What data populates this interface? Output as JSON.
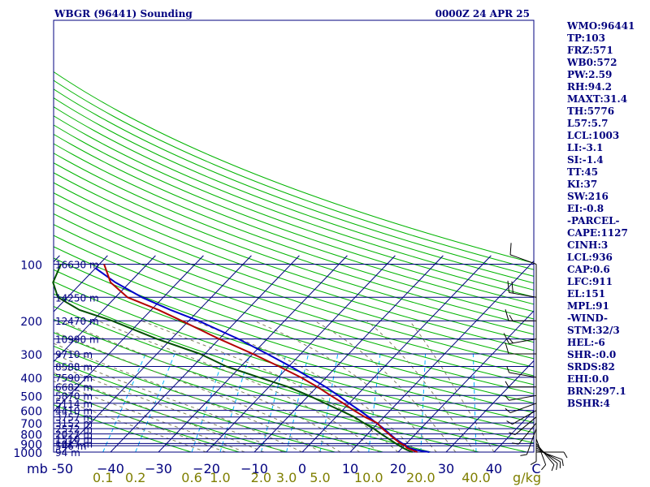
{
  "header": {
    "station": "WBGR (96441) Sounding",
    "time": "0000Z 24 APR 25"
  },
  "indices": [
    "WMO:96441",
    "TP:103",
    "FRZ:571",
    "WB0:572",
    "PW:2.59",
    "RH:94.2",
    "MAXT:31.4",
    "TH:5776",
    "L57:5.7",
    "LCL:1003",
    "LI:-3.1",
    "SI:-1.4",
    "TT:45",
    "KI:37",
    "SW:216",
    "EI:-0.8",
    "-PARCEL-",
    "CAPE:1127",
    "CINH:3",
    "LCL:936",
    "CAP:0.6",
    "LFC:911",
    "EL:151",
    "MPL:91",
    "-WIND-",
    "STM:32/3",
    "HEL:-6",
    "SHR-:0.0",
    "SRDS:82",
    "EHI:0.0",
    "BRN:297.1",
    "BSHR:4"
  ],
  "colors": {
    "isobar": "#00007f",
    "isotherm": "#00007f",
    "dry_adiabat": "#00b400",
    "moist_adiabat": "#7f7f5f",
    "mixing_ratio": "#00b4ff",
    "temperature": "#b40000",
    "dewpoint": "#005000",
    "parcel": "#0000cc",
    "wind": "#000000",
    "axis_text_blue": "#00007f",
    "mixing_text": "#7f7f00"
  },
  "chart_data": {
    "type": "skew-t",
    "title": "WBGR (96441) Sounding",
    "pressure_levels_mb": [
      100,
      200,
      300,
      400,
      500,
      600,
      700,
      800,
      900,
      1000
    ],
    "pressure_tick_labels": [
      "100",
      "200",
      "300",
      "400",
      "500",
      "600",
      "700",
      "800",
      "900",
      "1000"
    ],
    "pressure_unit": "mb",
    "temperature_ticks_c": [
      -50,
      -40,
      -30,
      -20,
      -10,
      0,
      10,
      20,
      30,
      40
    ],
    "temperature_tick_labels": [
      "-50",
      "−40",
      "−30",
      "−20",
      "−10",
      "0",
      "10",
      "20",
      "30",
      "40"
    ],
    "xlim_c": [
      -50,
      50
    ],
    "ylim_mb": [
      1000,
      100
    ],
    "mixing_ratio_labels": [
      "0.1",
      "0.2",
      "0.6",
      "1.0",
      "2.0",
      "3.0",
      "5.0",
      "10.0",
      "20.0",
      "40.0"
    ],
    "mixing_ratio_unit": "g/kg",
    "corner_label": "C",
    "height_labels": [
      {
        "p": 100,
        "label": "16630 m"
      },
      {
        "p": 150,
        "label": "14250 m"
      },
      {
        "p": 200,
        "label": "12470 m"
      },
      {
        "p": 250,
        "label": "10990 m"
      },
      {
        "p": 300,
        "label": "9710 m"
      },
      {
        "p": 350,
        "label": "8588 m"
      },
      {
        "p": 400,
        "label": "7590 m"
      },
      {
        "p": 450,
        "label": "6682 m"
      },
      {
        "p": 500,
        "label": "5870 m"
      },
      {
        "p": 550,
        "label": "5114 m"
      },
      {
        "p": 600,
        "label": "4410 m"
      },
      {
        "p": 650,
        "label": "3757 m"
      },
      {
        "p": 700,
        "label": "3152 m"
      },
      {
        "p": 750,
        "label": "2572 m"
      },
      {
        "p": 800,
        "label": "2027 m"
      },
      {
        "p": 850,
        "label": "1510 m"
      },
      {
        "p": 900,
        "label": "1017 m"
      },
      {
        "p": 925,
        "label": "546 m"
      },
      {
        "p": 1000,
        "label": "94 m"
      }
    ],
    "temperature": [
      {
        "p": 1000,
        "t": 24.0
      },
      {
        "p": 975,
        "t": 22.5
      },
      {
        "p": 950,
        "t": 21.0
      },
      {
        "p": 925,
        "t": 20.2
      },
      {
        "p": 900,
        "t": 18.8
      },
      {
        "p": 850,
        "t": 16.6
      },
      {
        "p": 800,
        "t": 14.4
      },
      {
        "p": 750,
        "t": 12.0
      },
      {
        "p": 700,
        "t": 9.8
      },
      {
        "p": 650,
        "t": 6.0
      },
      {
        "p": 600,
        "t": 2.4
      },
      {
        "p": 550,
        "t": -1.2
      },
      {
        "p": 500,
        "t": -5.4
      },
      {
        "p": 450,
        "t": -9.9
      },
      {
        "p": 400,
        "t": -15.3
      },
      {
        "p": 350,
        "t": -22.0
      },
      {
        "p": 300,
        "t": -30.0
      },
      {
        "p": 250,
        "t": -40.0
      },
      {
        "p": 200,
        "t": -51.5
      },
      {
        "p": 175,
        "t": -58.5
      },
      {
        "p": 150,
        "t": -67.5
      },
      {
        "p": 125,
        "t": -74.0
      },
      {
        "p": 100,
        "t": -79.0
      }
    ],
    "dewpoint": [
      {
        "p": 1000,
        "t": 23.0
      },
      {
        "p": 975,
        "t": 21.5
      },
      {
        "p": 950,
        "t": 20.2
      },
      {
        "p": 925,
        "t": 19.0
      },
      {
        "p": 900,
        "t": 17.8
      },
      {
        "p": 850,
        "t": 15.4
      },
      {
        "p": 800,
        "t": 12.8
      },
      {
        "p": 750,
        "t": 10.2
      },
      {
        "p": 700,
        "t": 7.0
      },
      {
        "p": 650,
        "t": 3.8
      },
      {
        "p": 600,
        "t": -0.4
      },
      {
        "p": 550,
        "t": -5.0
      },
      {
        "p": 500,
        "t": -10.0
      },
      {
        "p": 450,
        "t": -16.0
      },
      {
        "p": 400,
        "t": -24.0
      },
      {
        "p": 350,
        "t": -33.0
      },
      {
        "p": 300,
        "t": -41.0
      },
      {
        "p": 250,
        "t": -53.0
      },
      {
        "p": 200,
        "t": -66.0
      },
      {
        "p": 175,
        "t": -75.0
      },
      {
        "p": 150,
        "t": -82.0
      },
      {
        "p": 125,
        "t": -86.0
      },
      {
        "p": 100,
        "t": -88.0
      }
    ],
    "parcel": [
      {
        "p": 1000,
        "t": 26.5
      },
      {
        "p": 975,
        "t": 23.5
      },
      {
        "p": 950,
        "t": 21.4
      },
      {
        "p": 925,
        "t": 20.4
      },
      {
        "p": 900,
        "t": 19.2
      },
      {
        "p": 850,
        "t": 16.8
      },
      {
        "p": 800,
        "t": 14.6
      },
      {
        "p": 750,
        "t": 12.3
      },
      {
        "p": 700,
        "t": 9.6
      },
      {
        "p": 650,
        "t": 6.8
      },
      {
        "p": 600,
        "t": 3.6
      },
      {
        "p": 550,
        "t": 0.0
      },
      {
        "p": 500,
        "t": -3.8
      },
      {
        "p": 450,
        "t": -8.2
      },
      {
        "p": 400,
        "t": -13.5
      },
      {
        "p": 350,
        "t": -19.6
      },
      {
        "p": 300,
        "t": -27.0
      },
      {
        "p": 250,
        "t": -36.0
      },
      {
        "p": 200,
        "t": -48.0
      },
      {
        "p": 175,
        "t": -56.0
      },
      {
        "p": 150,
        "t": -64.5
      },
      {
        "p": 125,
        "t": -73.0
      },
      {
        "p": 105,
        "t": -80.0
      }
    ],
    "winds": [
      {
        "p": 1000,
        "dir": 90,
        "kt": 5
      },
      {
        "p": 975,
        "dir": 110,
        "kt": 5
      },
      {
        "p": 950,
        "dir": 120,
        "kt": 5
      },
      {
        "p": 925,
        "dir": 130,
        "kt": 5
      },
      {
        "p": 900,
        "dir": 140,
        "kt": 5
      },
      {
        "p": 850,
        "dir": 160,
        "kt": 5
      },
      {
        "p": 800,
        "dir": 180,
        "kt": 5
      },
      {
        "p": 750,
        "dir": 200,
        "kt": 5
      },
      {
        "p": 700,
        "dir": 220,
        "kt": 5
      },
      {
        "p": 650,
        "dir": 230,
        "kt": 5
      },
      {
        "p": 600,
        "dir": 240,
        "kt": 5
      },
      {
        "p": 550,
        "dir": 250,
        "kt": 5
      },
      {
        "p": 500,
        "dir": 260,
        "kt": 5
      },
      {
        "p": 450,
        "dir": 270,
        "kt": 5
      },
      {
        "p": 400,
        "dir": 280,
        "kt": 5
      },
      {
        "p": 300,
        "dir": 270,
        "kt": 10
      },
      {
        "p": 250,
        "dir": 260,
        "kt": 15
      },
      {
        "p": 200,
        "dir": 270,
        "kt": 15
      },
      {
        "p": 150,
        "dir": 280,
        "kt": 20
      },
      {
        "p": 100,
        "dir": 290,
        "kt": 10
      }
    ]
  }
}
